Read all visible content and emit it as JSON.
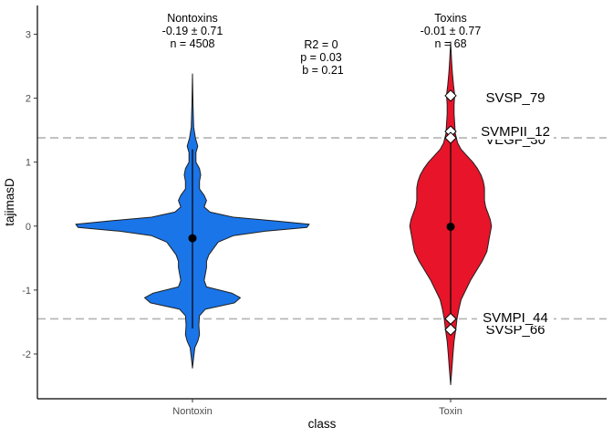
{
  "chart_data": {
    "type": "violin",
    "xlabel": "class",
    "ylabel": "tajimasD",
    "categories": [
      "Nontoxin",
      "Toxin"
    ],
    "ylim": [
      -2.7,
      3.45
    ],
    "yticks": [
      -2,
      -1,
      0,
      1,
      2,
      3
    ],
    "grid": false,
    "reference_lines": [
      1.38,
      -1.45
    ],
    "colors": {
      "Nontoxin": "#1a75e8",
      "Toxin": "#e8142a",
      "reference_line": "#b3b3b3"
    },
    "series": [
      {
        "category": "Nontoxin",
        "fill": "#1a75e8",
        "y_min": -2.22,
        "y_max": 2.38,
        "whisker_range": [
          -1.6,
          1.2
        ],
        "mean": -0.19,
        "annotation": [
          "Nontoxins",
          "-0.19 ± 0.71",
          "n = 4508"
        ],
        "profile": [
          [
            -2.22,
            0.0
          ],
          [
            -2.05,
            0.01
          ],
          [
            -1.9,
            0.02
          ],
          [
            -1.8,
            0.045
          ],
          [
            -1.7,
            0.06
          ],
          [
            -1.55,
            0.055
          ],
          [
            -1.4,
            0.06
          ],
          [
            -1.3,
            0.11
          ],
          [
            -1.2,
            0.36
          ],
          [
            -1.12,
            0.41
          ],
          [
            -1.05,
            0.34
          ],
          [
            -0.95,
            0.12
          ],
          [
            -0.85,
            0.1
          ],
          [
            -0.75,
            0.11
          ],
          [
            -0.65,
            0.12
          ],
          [
            -0.55,
            0.12
          ],
          [
            -0.45,
            0.14
          ],
          [
            -0.35,
            0.18
          ],
          [
            -0.25,
            0.22
          ],
          [
            -0.15,
            0.35
          ],
          [
            -0.08,
            0.62
          ],
          [
            -0.02,
            0.98
          ],
          [
            0.03,
            1.0
          ],
          [
            0.08,
            0.72
          ],
          [
            0.14,
            0.35
          ],
          [
            0.22,
            0.15
          ],
          [
            0.3,
            0.1
          ],
          [
            0.4,
            0.12
          ],
          [
            0.48,
            0.1
          ],
          [
            0.58,
            0.06
          ],
          [
            0.7,
            0.06
          ],
          [
            0.8,
            0.07
          ],
          [
            0.9,
            0.06
          ],
          [
            1.0,
            0.03
          ],
          [
            1.15,
            0.03
          ],
          [
            1.25,
            0.045
          ],
          [
            1.38,
            0.025
          ],
          [
            1.55,
            0.01
          ],
          [
            1.9,
            0.005
          ],
          [
            2.38,
            0.0
          ]
        ],
        "labeled_points": []
      },
      {
        "category": "Toxin",
        "fill": "#e8142a",
        "y_min": -2.48,
        "y_max": 2.88,
        "whisker_range": [
          -1.45,
          1.38
        ],
        "mean": -0.01,
        "annotation": [
          "Toxins",
          "-0.01 ± 0.77",
          "n = 68"
        ],
        "profile": [
          [
            -2.48,
            0.0
          ],
          [
            -2.25,
            0.01
          ],
          [
            -2.0,
            0.02
          ],
          [
            -1.8,
            0.03
          ],
          [
            -1.6,
            0.045
          ],
          [
            -1.45,
            0.055
          ],
          [
            -1.3,
            0.07
          ],
          [
            -1.15,
            0.09
          ],
          [
            -1.0,
            0.13
          ],
          [
            -0.85,
            0.17
          ],
          [
            -0.7,
            0.22
          ],
          [
            -0.55,
            0.27
          ],
          [
            -0.4,
            0.31
          ],
          [
            -0.3,
            0.32
          ],
          [
            -0.2,
            0.33
          ],
          [
            -0.1,
            0.34
          ],
          [
            0.0,
            0.35
          ],
          [
            0.1,
            0.34
          ],
          [
            0.2,
            0.32
          ],
          [
            0.3,
            0.3
          ],
          [
            0.4,
            0.29
          ],
          [
            0.5,
            0.29
          ],
          [
            0.6,
            0.29
          ],
          [
            0.7,
            0.28
          ],
          [
            0.8,
            0.26
          ],
          [
            0.9,
            0.23
          ],
          [
            1.0,
            0.19
          ],
          [
            1.1,
            0.14
          ],
          [
            1.2,
            0.09
          ],
          [
            1.3,
            0.06
          ],
          [
            1.45,
            0.04
          ],
          [
            1.6,
            0.035
          ],
          [
            1.75,
            0.03
          ],
          [
            1.9,
            0.03
          ],
          [
            2.05,
            0.035
          ],
          [
            2.2,
            0.025
          ],
          [
            2.4,
            0.015
          ],
          [
            2.6,
            0.008
          ],
          [
            2.88,
            0.0
          ]
        ],
        "labeled_points": [
          {
            "label": "SVSP_79",
            "y": 2.04
          },
          {
            "label": "SVMPII_12",
            "y": 1.48
          },
          {
            "label": "VEGF_30",
            "y": 1.38
          },
          {
            "label": "SVMPI_44",
            "y": -1.45
          },
          {
            "label": "SVSP_66",
            "y": -1.62
          }
        ]
      }
    ],
    "regression_annotation": [
      "R2 = 0",
      "p = 0.03",
      "b = 0.21"
    ]
  }
}
